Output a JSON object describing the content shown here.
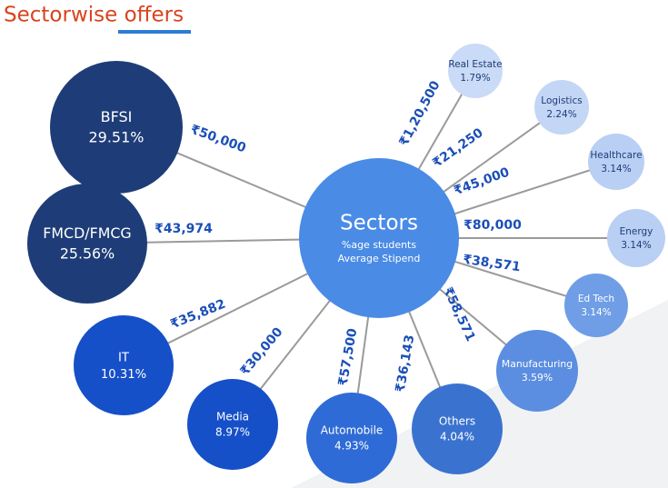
{
  "title": "Sectorwise offers",
  "center": {
    "label": "Sectors",
    "line1": "%age students",
    "line2": "Average Stipend"
  },
  "nodes": [
    {
      "label": "BFSI",
      "share": "29.51%",
      "stipend": "₹50,000"
    },
    {
      "label": "FMCD/FMCG",
      "share": "25.56%",
      "stipend": "₹43,974"
    },
    {
      "label": "IT",
      "share": "10.31%",
      "stipend": "₹35,882"
    },
    {
      "label": "Media",
      "share": "8.97%",
      "stipend": "₹30,000"
    },
    {
      "label": "Automobile",
      "share": "4.93%",
      "stipend": "₹57,500"
    },
    {
      "label": "Others",
      "share": "4.04%",
      "stipend": "₹36,143"
    },
    {
      "label": "Manufacturing",
      "share": "3.59%",
      "stipend": "₹58,571"
    },
    {
      "label": "Ed Tech",
      "share": "3.14%",
      "stipend": "₹38,571"
    },
    {
      "label": "Energy",
      "share": "3.14%",
      "stipend": "₹80,000"
    },
    {
      "label": "Healthcare",
      "share": "3.14%",
      "stipend": "₹45,000"
    },
    {
      "label": "Logistics",
      "share": "2.24%",
      "stipend": "₹21,250"
    },
    {
      "label": "Real Estate",
      "share": "1.79%",
      "stipend": "₹1,20,500"
    }
  ]
}
